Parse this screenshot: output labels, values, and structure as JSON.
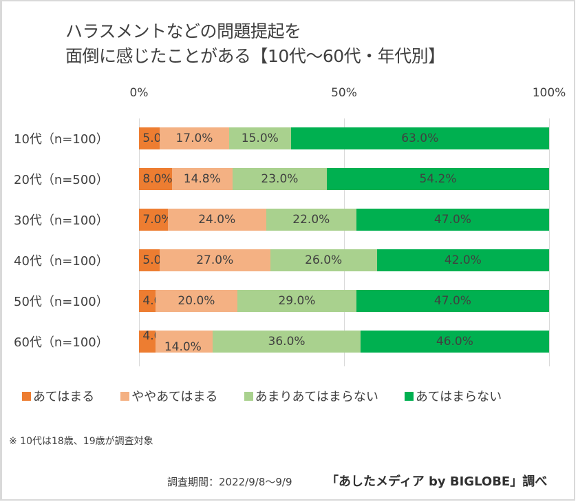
{
  "chart_data": {
    "type": "bar",
    "orientation": "horizontal",
    "stacked": true,
    "title": "ハラスメントなどの問題提起を\n面倒に感じたことがある【10代～60代・年代別】",
    "title_lines": [
      "ハラスメントなどの問題提起を",
      "面倒に感じたことがある【10代～60代・年代別】"
    ],
    "categories": [
      "10代（n=100）",
      "20代（n=500）",
      "30代（n=100）",
      "40代（n=100）",
      "50代（n=100）",
      "60代（n=100）"
    ],
    "series": [
      {
        "name": "あてはまる",
        "color": "#ed7d31",
        "values": [
          5.0,
          8.0,
          7.0,
          5.0,
          4.0,
          4.0
        ]
      },
      {
        "name": "ややあてはまる",
        "color": "#f4b183",
        "values": [
          17.0,
          14.8,
          24.0,
          27.0,
          20.0,
          14.0
        ]
      },
      {
        "name": "あまりあてはまらない",
        "color": "#a9d18e",
        "values": [
          15.0,
          23.0,
          22.0,
          26.0,
          29.0,
          36.0
        ]
      },
      {
        "name": "あてはまらない",
        "color": "#00b050",
        "values": [
          63.0,
          54.2,
          47.0,
          42.0,
          47.0,
          46.0
        ]
      }
    ],
    "data_labels": [
      [
        "5.0%",
        "17.0%",
        "15.0%",
        "63.0%"
      ],
      [
        "8.0%",
        "14.8%",
        "23.0%",
        "54.2%"
      ],
      [
        "7.0%",
        "24.0%",
        "22.0%",
        "47.0%"
      ],
      [
        "5.0%",
        "27.0%",
        "26.0%",
        "42.0%"
      ],
      [
        "4.0%",
        "20.0%",
        "29.0%",
        "47.0%"
      ],
      [
        "4.0%",
        "14.0%",
        "36.0%",
        "46.0%"
      ]
    ],
    "xaxis": {
      "ticks": [
        "0%",
        "50%",
        "100%"
      ],
      "tick_values": [
        0,
        50,
        100
      ],
      "range": [
        0,
        100
      ],
      "position": "top"
    },
    "xlabel": "",
    "ylabel": "",
    "grid": true,
    "legend_position": "bottom"
  },
  "footer": {
    "note": "※ 10代は18歳、19歳が調査対象",
    "period": "調査期間：2022/9/8～9/9",
    "source": "「あしたメディア by BIGLOBE」調べ"
  }
}
